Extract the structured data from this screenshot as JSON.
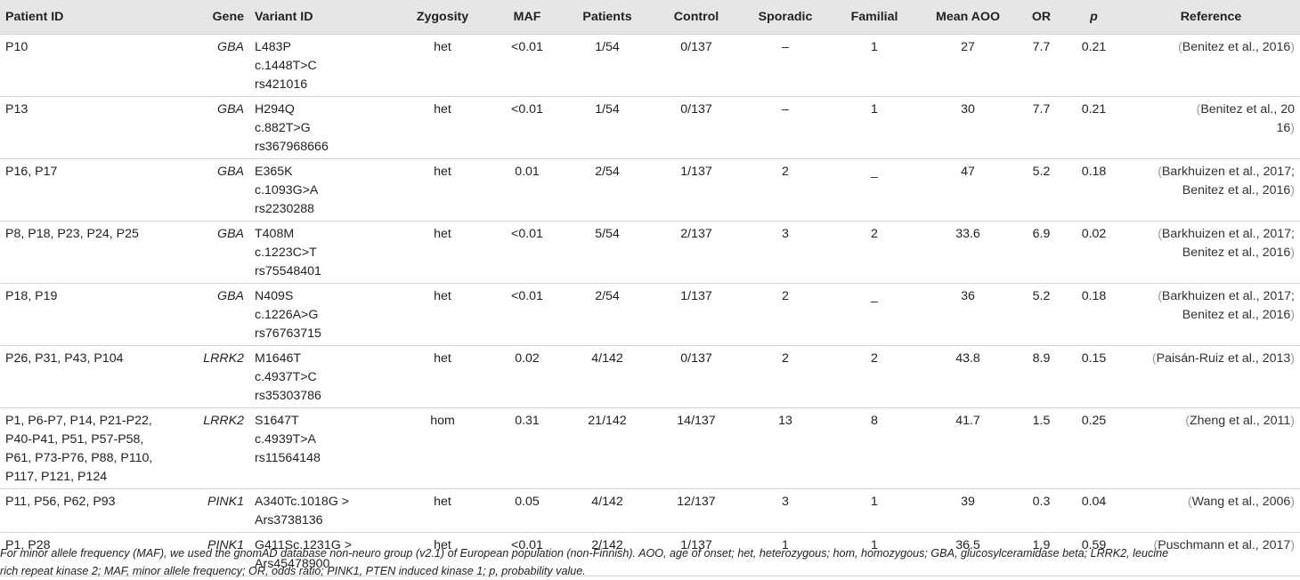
{
  "table": {
    "headers": {
      "patient_id": "Patient ID",
      "gene": "Gene",
      "variant_id": "Variant ID",
      "zygosity": "Zygosity",
      "maf": "MAF",
      "patients": "Patients",
      "control": "Control",
      "sporadic": "Sporadic",
      "familial": "Familial",
      "mean_aoo": "Mean AOO",
      "or": "OR",
      "p": "p",
      "reference": "Reference"
    },
    "rows": [
      {
        "patient_id": "P10",
        "gene": "GBA",
        "variant_id": "L483P\nc.1448T>C\nrs421016",
        "zygosity": "het",
        "maf": "<0.01",
        "patients": "1/54",
        "control": "0/137",
        "sporadic": "–",
        "familial": "1",
        "mean_aoo": "27",
        "or": "7.7",
        "p": "0.21",
        "reference": "Benitez et al., 2016"
      },
      {
        "patient_id": "P13",
        "gene": "GBA",
        "variant_id": "H294Q\nc.882T>G\nrs367968666",
        "zygosity": "het",
        "maf": "<0.01",
        "patients": "1/54",
        "control": "0/137",
        "sporadic": "–",
        "familial": "1",
        "mean_aoo": "30",
        "or": "7.7",
        "p": "0.21",
        "reference": "Benitez et al., 20\n16"
      },
      {
        "patient_id": "P16, P17",
        "gene": "GBA",
        "variant_id": "E365K\nc.1093G>A\nrs2230288",
        "zygosity": "het",
        "maf": "0.01",
        "patients": "2/54",
        "control": "1/137",
        "sporadic": "2",
        "familial": "_",
        "mean_aoo": "47",
        "or": "5.2",
        "p": "0.18",
        "reference": "Barkhuizen et al., 2017;\nBenitez et al., 2016"
      },
      {
        "patient_id": "P8, P18, P23, P24, P25",
        "gene": "GBA",
        "variant_id": "T408M\nc.1223C>T\nrs75548401",
        "zygosity": "het",
        "maf": "<0.01",
        "patients": "5/54",
        "control": "2/137",
        "sporadic": "3",
        "familial": "2",
        "mean_aoo": "33.6",
        "or": "6.9",
        "p": "0.02",
        "reference": "Barkhuizen et al., 2017;\nBenitez et al., 2016"
      },
      {
        "patient_id": "P18, P19",
        "gene": "GBA",
        "variant_id": "N409S\nc.1226A>G\nrs76763715",
        "zygosity": "het",
        "maf": "<0.01",
        "patients": "2/54",
        "control": "1/137",
        "sporadic": "2",
        "familial": "_",
        "mean_aoo": "36",
        "or": "5.2",
        "p": "0.18",
        "reference": "Barkhuizen et al., 2017;\nBenitez et al., 2016"
      },
      {
        "patient_id": "P26, P31, P43, P104",
        "gene": "LRRK2",
        "variant_id": "M1646T\nc.4937T>C\nrs35303786",
        "zygosity": "het",
        "maf": "0.02",
        "patients": "4/142",
        "control": "0/137",
        "sporadic": "2",
        "familial": "2",
        "mean_aoo": "43.8",
        "or": "8.9",
        "p": "0.15",
        "reference": "Paisán-Ruiz et al., 2013"
      },
      {
        "patient_id": "P1, P6-P7, P14, P21-P22,\nP40-P41, P51, P57-P58,\nP61, P73-P76, P88, P110,\nP117, P121, P124",
        "gene": "LRRK2",
        "variant_id": "S1647T\nc.4939T>A\nrs11564148",
        "zygosity": "hom",
        "maf": "0.31",
        "patients": "21/142",
        "control": "14/137",
        "sporadic": "13",
        "familial": "8",
        "mean_aoo": "41.7",
        "or": "1.5",
        "p": "0.25",
        "reference": "Zheng et al., 2011"
      },
      {
        "patient_id": "P11, P56, P62, P93",
        "gene": "PINK1",
        "variant_id": "A340Tc.1018G >\nArs3738136",
        "zygosity": "het",
        "maf": "0.05",
        "patients": "4/142",
        "control": "12/137",
        "sporadic": "3",
        "familial": "1",
        "mean_aoo": "39",
        "or": "0.3",
        "p": "0.04",
        "reference": "Wang et al., 2006"
      },
      {
        "patient_id": "P1, P28",
        "gene": "PINK1",
        "variant_id": "G411Sc.1231G >\nArs45478900",
        "zygosity": "het",
        "maf": "<0.01",
        "patients": "2/142",
        "control": "1/137",
        "sporadic": "1",
        "familial": "1",
        "mean_aoo": "36.5",
        "or": "1.9",
        "p": "0.59",
        "reference": "Puschmann et al., 2017"
      }
    ]
  },
  "footnote": "For minor allele frequency (MAF), we used the gnomAD database non-neuro group (v2.1) of European population (non-Finnish). AOO, age of onset; het, heterozygous; hom, homozygous; GBA, glucosylceramidase beta; LRRK2, leucine\nrich repeat kinase 2; MAF, minor allele frequency; OR, odds ratio; PINK1, PTEN induced kinase 1; p, probability value."
}
